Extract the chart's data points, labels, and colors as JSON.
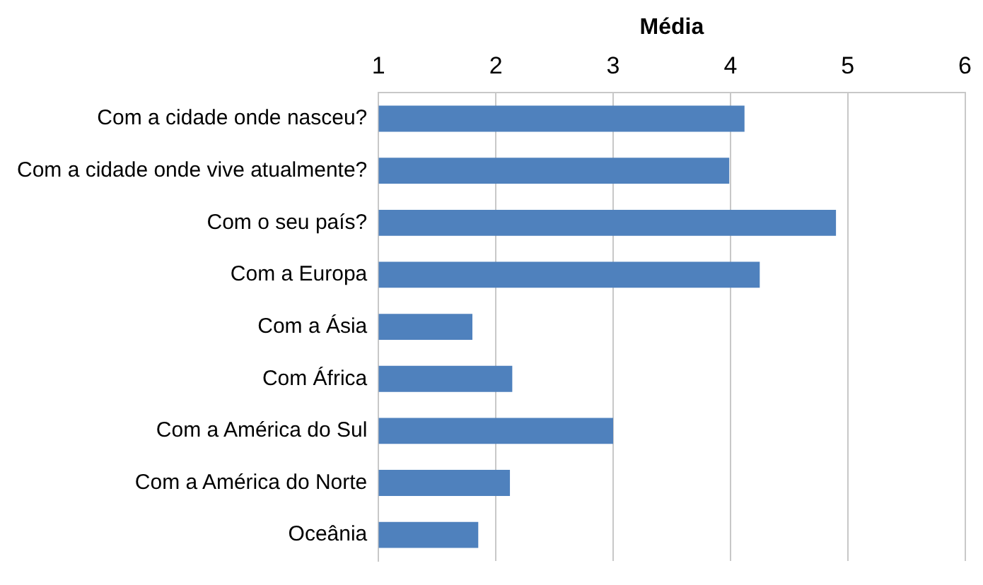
{
  "chart_data": {
    "type": "bar",
    "orientation": "horizontal",
    "xlabel": "Média",
    "categories": [
      "Com a cidade onde nasceu?",
      "Com a cidade onde vive atualmente?",
      "Com o seu país?",
      "Com a Europa",
      "Com a Ásia",
      "Com África",
      "Com a América do Sul",
      "Com a América do Norte",
      "Oceânia"
    ],
    "values": [
      4.12,
      3.99,
      4.9,
      4.25,
      1.8,
      2.14,
      3.0,
      2.12,
      1.85
    ],
    "color": "#4f81bd",
    "xlim": [
      1,
      6
    ],
    "xticks": [
      1,
      2,
      3,
      4,
      5,
      6
    ],
    "grid": "x"
  }
}
